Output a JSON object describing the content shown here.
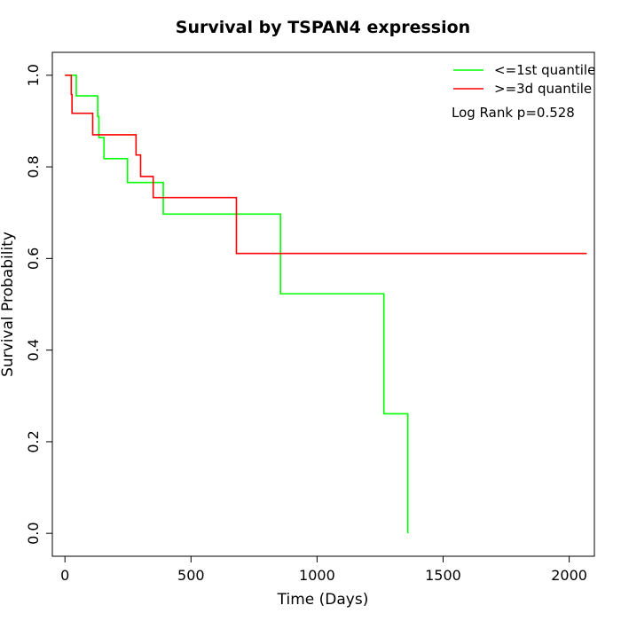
{
  "chart_data": {
    "type": "line",
    "subtype": "kaplan-meier",
    "title": "Survival by TSPAN4 expression",
    "xlabel": "Time (Days)",
    "ylabel": "Survival Probability",
    "xlim": [
      -50,
      2100
    ],
    "ylim": [
      -0.05,
      1.05
    ],
    "xticks": [
      0,
      500,
      1000,
      1500,
      2000
    ],
    "yticks": [
      0.0,
      0.2,
      0.4,
      0.6,
      0.8,
      1.0
    ],
    "xtick_labels": [
      "0",
      "500",
      "1000",
      "1500",
      "2000"
    ],
    "ytick_labels": [
      "0.0",
      "0.2",
      "0.4",
      "0.6",
      "0.8",
      "1.0"
    ],
    "grid": false,
    "legend_position": "top-right",
    "annotation": "Log Rank p=0.528",
    "series": [
      {
        "name": "<=1st quantile",
        "color": "#00ff00",
        "points": [
          [
            0,
            1.0
          ],
          [
            45,
            1.0
          ],
          [
            45,
            0.955
          ],
          [
            130,
            0.955
          ],
          [
            130,
            0.91
          ],
          [
            135,
            0.91
          ],
          [
            135,
            0.864
          ],
          [
            155,
            0.864
          ],
          [
            155,
            0.818
          ],
          [
            248,
            0.818
          ],
          [
            248,
            0.766
          ],
          [
            390,
            0.766
          ],
          [
            390,
            0.697
          ],
          [
            855,
            0.697
          ],
          [
            855,
            0.523
          ],
          [
            1265,
            0.523
          ],
          [
            1265,
            0.261
          ],
          [
            1360,
            0.261
          ],
          [
            1360,
            0.0
          ]
        ]
      },
      {
        "name": ">=3d quantile",
        "color": "#ff0000",
        "points": [
          [
            0,
            1.0
          ],
          [
            25,
            1.0
          ],
          [
            25,
            0.958
          ],
          [
            28,
            0.958
          ],
          [
            28,
            0.917
          ],
          [
            110,
            0.917
          ],
          [
            110,
            0.87
          ],
          [
            282,
            0.87
          ],
          [
            282,
            0.826
          ],
          [
            300,
            0.826
          ],
          [
            300,
            0.779
          ],
          [
            350,
            0.779
          ],
          [
            350,
            0.733
          ],
          [
            680,
            0.733
          ],
          [
            680,
            0.611
          ],
          [
            2070,
            0.611
          ]
        ]
      }
    ]
  }
}
